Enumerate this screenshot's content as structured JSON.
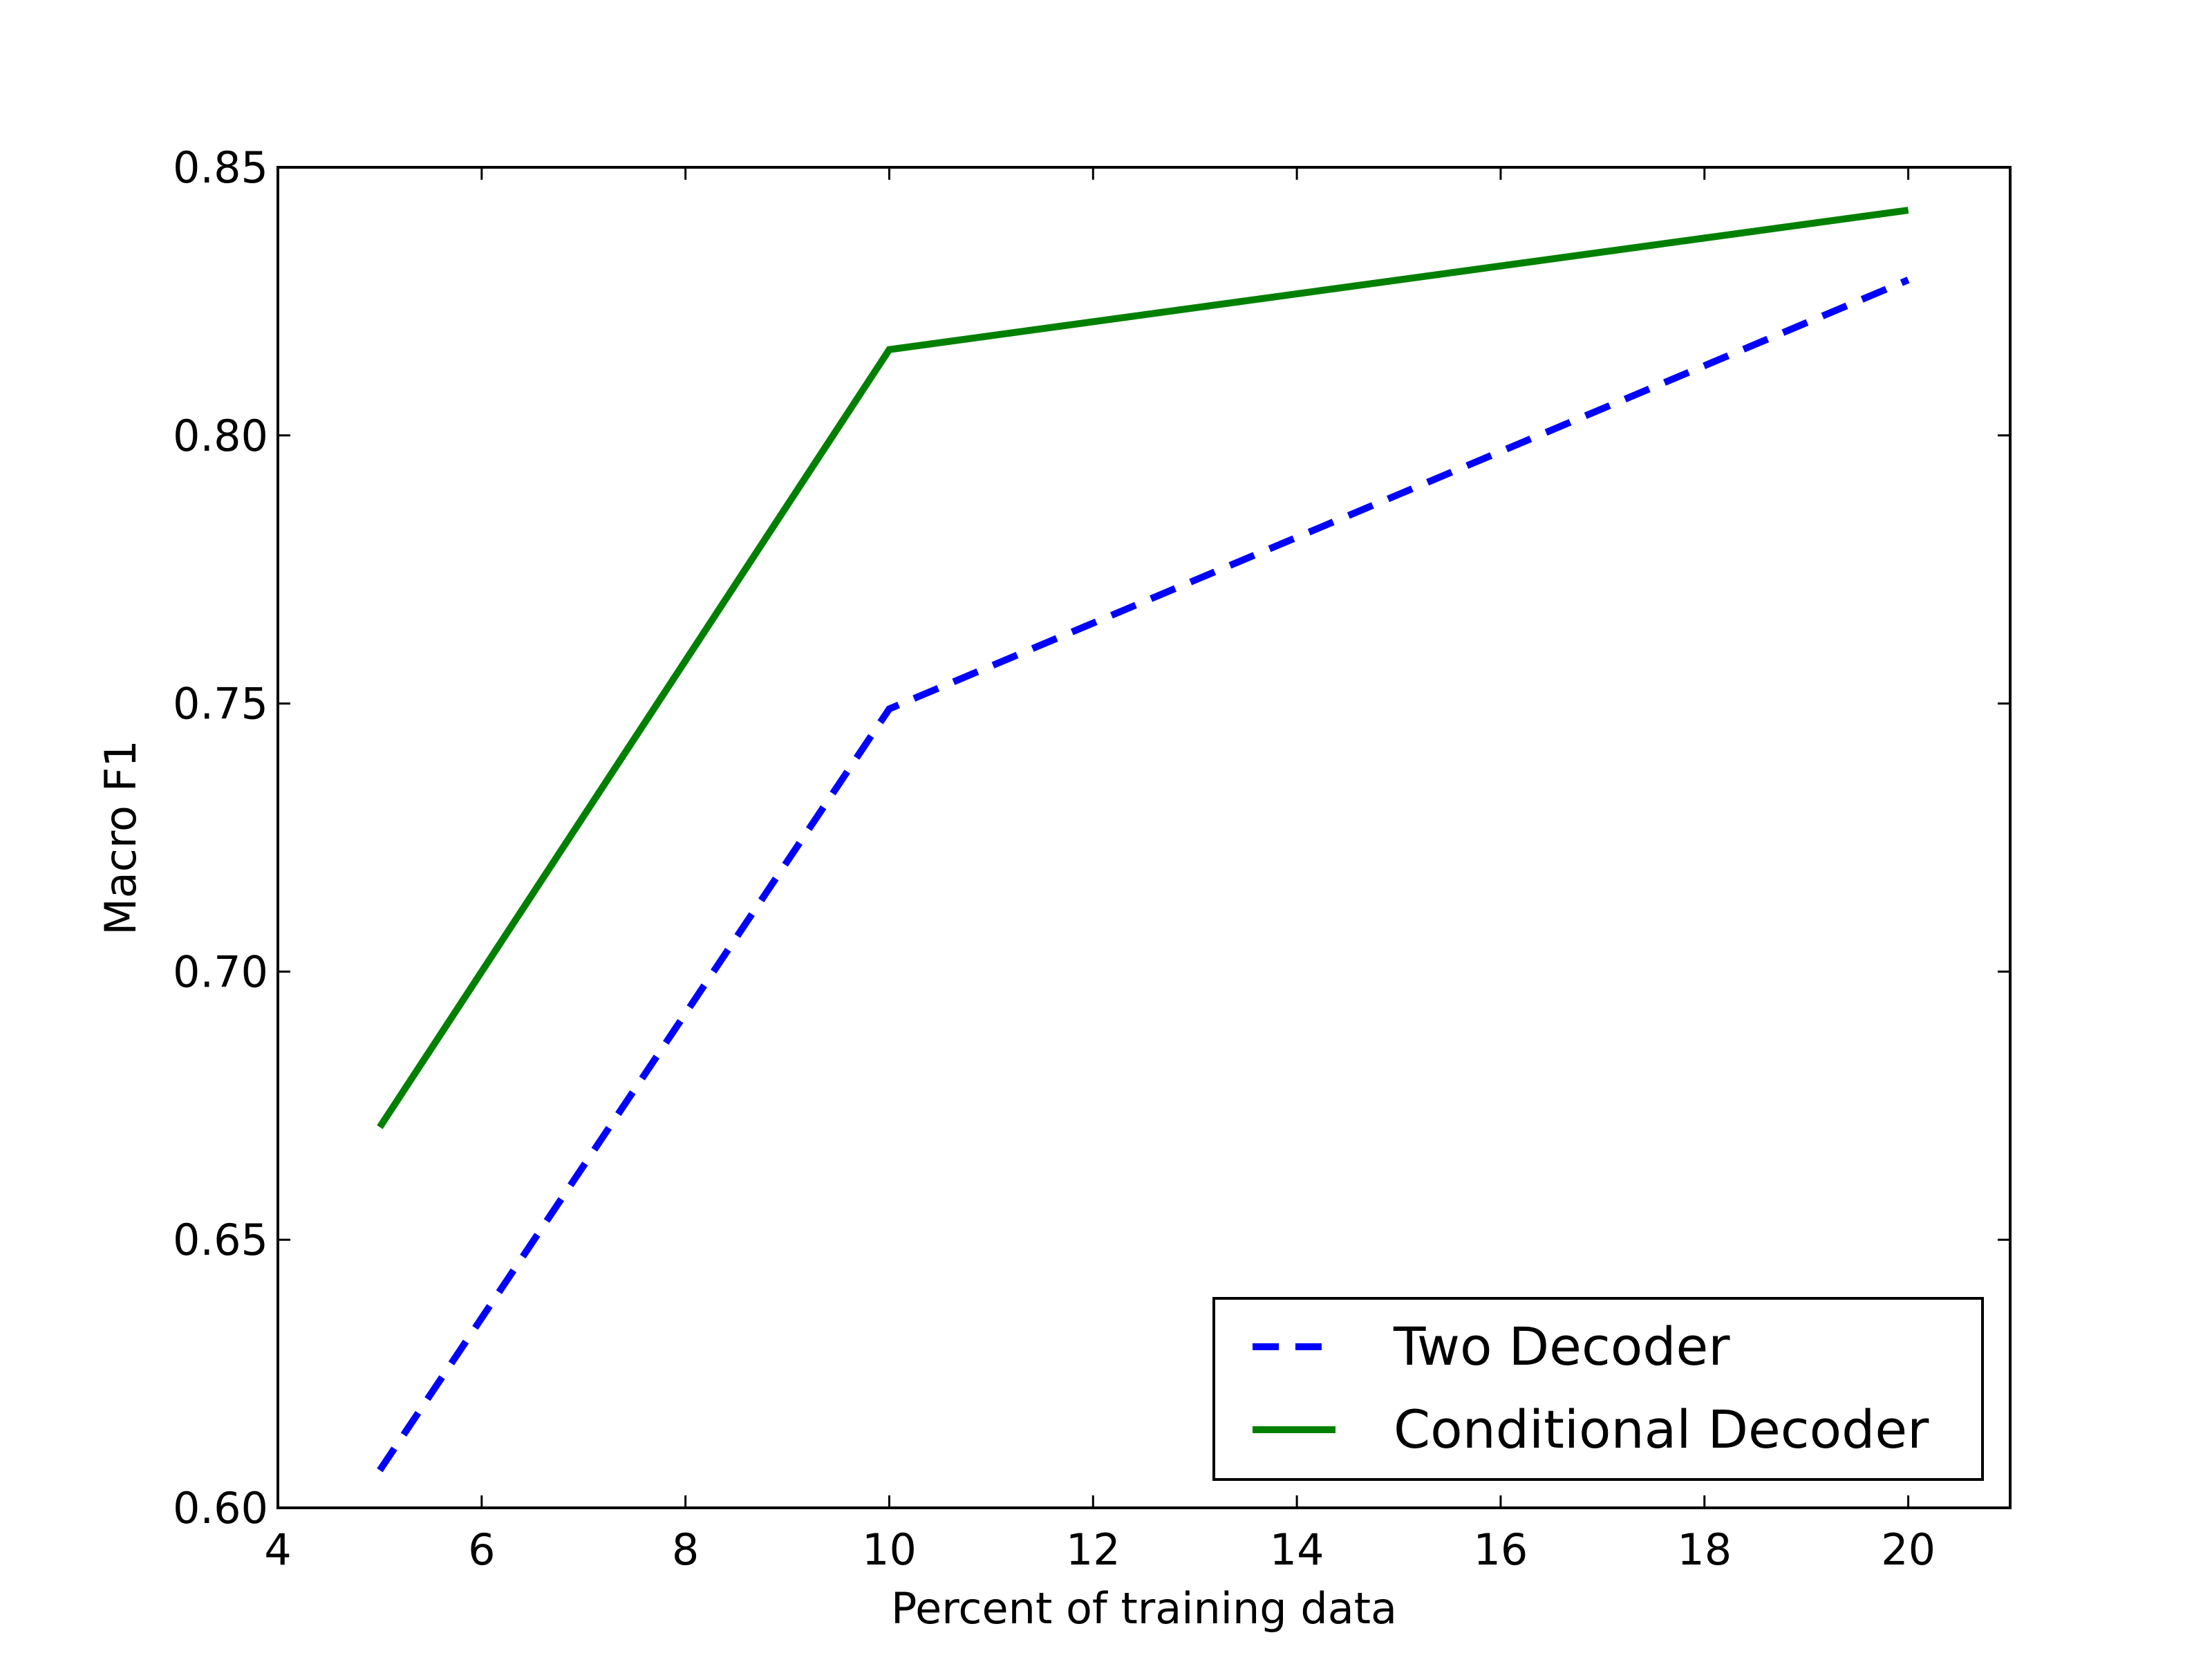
{
  "chart_data": {
    "type": "line",
    "title": "",
    "xlabel": "Percent of training data",
    "ylabel": "Macro F1",
    "xlim": [
      4,
      21
    ],
    "ylim": [
      0.6,
      0.85
    ],
    "xticks": [
      4,
      6,
      8,
      10,
      12,
      14,
      16,
      18,
      20
    ],
    "xtick_labels": [
      "4",
      "6",
      "8",
      "10",
      "12",
      "14",
      "16",
      "18",
      "20"
    ],
    "yticks": [
      0.6,
      0.65,
      0.7,
      0.75,
      0.8,
      0.85
    ],
    "ytick_labels": [
      "0.60",
      "0.65",
      "0.70",
      "0.75",
      "0.80",
      "0.85"
    ],
    "grid": false,
    "legend_position": "lower-right",
    "x": [
      5,
      10,
      20
    ],
    "series": [
      {
        "name": "Two Decoder",
        "values": [
          0.607,
          0.749,
          0.829
        ],
        "color": "#0000ff",
        "style": "dashed"
      },
      {
        "name": "Conditional Decoder",
        "values": [
          0.671,
          0.816,
          0.842
        ],
        "color": "#008000",
        "style": "solid"
      }
    ]
  }
}
